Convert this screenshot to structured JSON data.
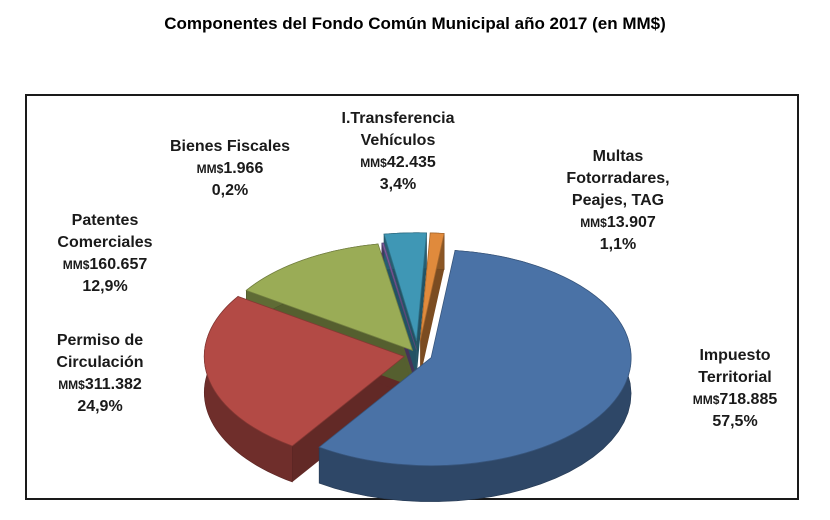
{
  "chart_data": {
    "type": "pie",
    "title": "Componentes del Fondo Común Municipal año 2017 (en MM$)",
    "slices": [
      {
        "key": "impuesto",
        "name": [
          "Impuesto",
          "Territorial"
        ],
        "prefix": "MM$",
        "value_label": "718.885",
        "percent_label": "57,5%",
        "value": 718.885,
        "percent": 57.5,
        "color": "#4a72a6"
      },
      {
        "key": "patentes",
        "name": [
          "Patentes",
          "Comerciales"
        ],
        "prefix": "MM$",
        "value_label": "160.657",
        "percent_label": "12,9%",
        "value": 160.657,
        "percent": 12.9,
        "color": "#9aac56"
      },
      {
        "key": "bienes",
        "name": [
          "Bienes Fiscales"
        ],
        "prefix": "MM$",
        "value_label": "1.966",
        "percent_label": "0,2%",
        "value": 1.966,
        "percent": 0.2,
        "color": "#7b5fa0"
      },
      {
        "key": "transferencia",
        "name": [
          "I.Transferencia",
          "Vehículos"
        ],
        "prefix": "MM$",
        "value_label": "42.435",
        "percent_label": "3,4%",
        "value": 42.435,
        "percent": 3.4,
        "color": "#3f97b5"
      },
      {
        "key": "multas",
        "name": [
          "Multas",
          "Fotorradares,",
          "Peajes, TAG"
        ],
        "prefix": "MM$",
        "value_label": "13.907",
        "percent_label": "1,1%",
        "value": 13.907,
        "percent": 1.1,
        "color": "#e08a3c"
      },
      {
        "key": "permiso",
        "name": [
          "Permiso de",
          "Circulación"
        ],
        "prefix": "MM$",
        "value_label": "311.382",
        "percent_label": "24,9%",
        "value": 311.382,
        "percent": 24.9,
        "color": "#b34a45"
      }
    ]
  }
}
